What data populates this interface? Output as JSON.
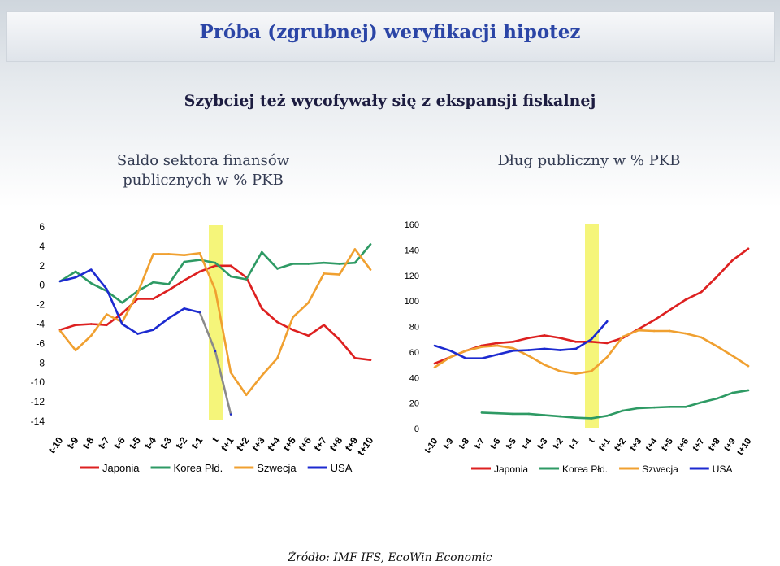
{
  "slide": {
    "title": "Próba (zgrubnej) weryfikacji hipotez",
    "subtitle": "Szybciej też wycofywały się z ekspansji fiskalnej",
    "source": "Źródło: IMF IFS, EcoWin Economic"
  },
  "colors": {
    "Japonia": "#dd2020",
    "Korea Płd.": "#2e9a64",
    "Szwecja": "#f0a030",
    "USA": "#1c2ad0",
    "highlight": "#f5f57a",
    "transition": "#8a8a8a"
  },
  "chart_data": [
    {
      "type": "line",
      "heading": "Saldo sektora finansów publicznych w % PKB",
      "x": [
        "t-10",
        "t-9",
        "t-8",
        "t-7",
        "t-6",
        "t-5",
        "t-4",
        "t-3",
        "t-2",
        "t-1",
        "t",
        "t+1",
        "t+2",
        "t+3",
        "t+4",
        "t+5",
        "t+6",
        "t+7",
        "t+8",
        "t+9",
        "t+10"
      ],
      "ylim": [
        -14,
        6
      ],
      "yticks": [
        6,
        4,
        2,
        0,
        -2,
        -4,
        -6,
        -8,
        -10,
        -12,
        -14
      ],
      "highlight_x": "t",
      "legend": "bottom",
      "series": [
        {
          "name": "Japonia",
          "values": [
            -4.6,
            -4.1,
            -4.0,
            -4.1,
            -2.9,
            -1.4,
            -1.4,
            -0.5,
            0.5,
            1.4,
            2.0,
            2.0,
            0.8,
            -2.4,
            -3.8,
            -4.6,
            -5.2,
            -4.1,
            -5.6,
            -7.5,
            -7.7
          ]
        },
        {
          "name": "Korea Płd.",
          "values": [
            0.4,
            1.4,
            0.2,
            -0.6,
            -1.8,
            -0.6,
            0.3,
            0.1,
            2.4,
            2.6,
            2.3,
            0.9,
            0.6,
            3.4,
            1.7,
            2.2,
            2.2,
            2.3,
            2.2,
            2.3,
            4.2
          ]
        },
        {
          "name": "Szwecja",
          "values": [
            -4.7,
            -6.7,
            -5.2,
            -3.0,
            -3.8,
            -0.8,
            3.2,
            3.2,
            3.1,
            3.3,
            -0.5,
            -9.0,
            -11.3,
            -9.3,
            -7.5,
            -3.3,
            -1.8,
            1.2,
            1.1,
            3.7,
            1.6
          ]
        },
        {
          "name": "USA",
          "values": [
            0.4,
            0.8,
            1.6,
            -0.4,
            -4.0,
            -5.0,
            -4.6,
            -3.4,
            -2.4,
            -2.8,
            -6.8,
            -13.3,
            null,
            null,
            null,
            null,
            null,
            null,
            null,
            null,
            null
          ]
        }
      ]
    },
    {
      "type": "line",
      "heading": "Dług publiczny w % PKB",
      "x": [
        "t-10",
        "t-9",
        "t-8",
        "t-7",
        "t-6",
        "t-5",
        "t-4",
        "t-3",
        "t-2",
        "t-1",
        "t",
        "t+1",
        "t+2",
        "t+3",
        "t+4",
        "t+5",
        "t+6",
        "t+7",
        "t+8",
        "t+9",
        "t+10"
      ],
      "ylim": [
        0,
        160
      ],
      "yticks": [
        160,
        140,
        120,
        100,
        80,
        60,
        40,
        20,
        0
      ],
      "highlight_x": "t",
      "legend": "bottom",
      "series": [
        {
          "name": "Japonia",
          "values": [
            51,
            56,
            61,
            65,
            67,
            68,
            71,
            73,
            71,
            68,
            68,
            67,
            71,
            78,
            85,
            93,
            101,
            107,
            119,
            132,
            141
          ]
        },
        {
          "name": "Korea Płd.",
          "values": [
            null,
            null,
            null,
            12.5,
            12,
            11.5,
            11.5,
            10.5,
            9.5,
            8.5,
            8,
            10,
            14,
            16,
            16.5,
            17,
            17,
            20.5,
            23.5,
            28,
            30
          ]
        },
        {
          "name": "Szwecja",
          "values": [
            48,
            56,
            61,
            64,
            65,
            63,
            57,
            50,
            45,
            43,
            45,
            56,
            72,
            77,
            76.5,
            76.5,
            74.5,
            71.5,
            64.5,
            57,
            49
          ]
        },
        {
          "name": "USA",
          "values": [
            65,
            61,
            55,
            55,
            58,
            61,
            61.5,
            62.5,
            61.5,
            62.5,
            70,
            84,
            null,
            null,
            null,
            null,
            null,
            null,
            null,
            null,
            null
          ]
        }
      ]
    }
  ]
}
